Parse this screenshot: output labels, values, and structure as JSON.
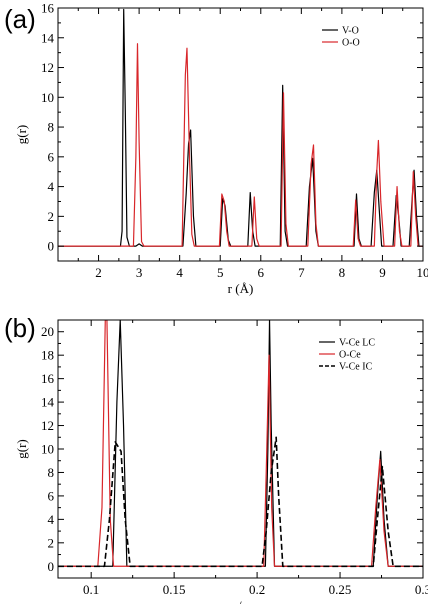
{
  "chart_data": [
    {
      "panel_label": "(a)",
      "type": "line",
      "xlabel": "r (Å)",
      "ylabel": "g(r)",
      "xlim": [
        1,
        10
      ],
      "ylim": [
        -1,
        16
      ],
      "xticks": [
        2,
        3,
        4,
        5,
        6,
        7,
        8,
        9,
        10
      ],
      "yticks": [
        0,
        2,
        4,
        6,
        8,
        10,
        12,
        14,
        16
      ],
      "legend_position": "top-right",
      "series": [
        {
          "name": "V-O",
          "color": "#000000",
          "dash": "solid",
          "points": [
            [
              1.0,
              0
            ],
            [
              2.54,
              0
            ],
            [
              2.58,
              1.0
            ],
            [
              2.62,
              15.9
            ],
            [
              2.66,
              9.0
            ],
            [
              2.7,
              0.6
            ],
            [
              2.76,
              0
            ],
            [
              2.92,
              0
            ],
            [
              3.0,
              0.15
            ],
            [
              3.08,
              0
            ],
            [
              4.08,
              0
            ],
            [
              4.16,
              3.5
            ],
            [
              4.22,
              6.9
            ],
            [
              4.27,
              7.8
            ],
            [
              4.34,
              2.0
            ],
            [
              4.4,
              0
            ],
            [
              5.0,
              0
            ],
            [
              5.06,
              3.2
            ],
            [
              5.12,
              2.7
            ],
            [
              5.2,
              0.4
            ],
            [
              5.26,
              0
            ],
            [
              5.68,
              0
            ],
            [
              5.74,
              3.6
            ],
            [
              5.8,
              1.0
            ],
            [
              5.86,
              0
            ],
            [
              6.48,
              0
            ],
            [
              6.54,
              10.8
            ],
            [
              6.6,
              1.0
            ],
            [
              6.66,
              0
            ],
            [
              7.12,
              0
            ],
            [
              7.2,
              4.0
            ],
            [
              7.28,
              5.9
            ],
            [
              7.36,
              1.0
            ],
            [
              7.42,
              0
            ],
            [
              8.3,
              0
            ],
            [
              8.36,
              3.5
            ],
            [
              8.42,
              0.5
            ],
            [
              8.48,
              0
            ],
            [
              8.72,
              0
            ],
            [
              8.8,
              3.6
            ],
            [
              8.86,
              5.1
            ],
            [
              8.92,
              2.5
            ],
            [
              8.98,
              0
            ],
            [
              9.26,
              0
            ],
            [
              9.34,
              3.4
            ],
            [
              9.4,
              2.0
            ],
            [
              9.46,
              0
            ],
            [
              9.66,
              0
            ],
            [
              9.74,
              3.5
            ],
            [
              9.78,
              5.1
            ],
            [
              9.84,
              2.0
            ],
            [
              9.9,
              0
            ],
            [
              10.0,
              0
            ]
          ]
        },
        {
          "name": "O-O",
          "color": "#d8262a",
          "dash": "solid",
          "points": [
            [
              1.0,
              0
            ],
            [
              2.86,
              0
            ],
            [
              2.92,
              6.0
            ],
            [
              2.96,
              13.6
            ],
            [
              3.0,
              7.0
            ],
            [
              3.06,
              0.3
            ],
            [
              3.12,
              0
            ],
            [
              4.06,
              0
            ],
            [
              4.14,
              11.5
            ],
            [
              4.18,
              13.3
            ],
            [
              4.24,
              6.3
            ],
            [
              4.3,
              0.8
            ],
            [
              4.36,
              0
            ],
            [
              4.98,
              0
            ],
            [
              5.04,
              3.5
            ],
            [
              5.1,
              3.0
            ],
            [
              5.16,
              1.0
            ],
            [
              5.22,
              0
            ],
            [
              5.78,
              0
            ],
            [
              5.84,
              3.3
            ],
            [
              5.9,
              0.5
            ],
            [
              5.96,
              0
            ],
            [
              6.5,
              0
            ],
            [
              6.56,
              10.3
            ],
            [
              6.62,
              1.5
            ],
            [
              6.68,
              0
            ],
            [
              7.16,
              0
            ],
            [
              7.24,
              5.5
            ],
            [
              7.3,
              6.8
            ],
            [
              7.36,
              1.5
            ],
            [
              7.42,
              0
            ],
            [
              8.28,
              0
            ],
            [
              8.34,
              3.1
            ],
            [
              8.4,
              0.5
            ],
            [
              8.46,
              0
            ],
            [
              8.8,
              0
            ],
            [
              8.86,
              5.0
            ],
            [
              8.9,
              7.1
            ],
            [
              8.96,
              3.0
            ],
            [
              9.04,
              0
            ],
            [
              9.3,
              0
            ],
            [
              9.36,
              4.0
            ],
            [
              9.42,
              1.0
            ],
            [
              9.48,
              0
            ],
            [
              9.7,
              0
            ],
            [
              9.76,
              5.0
            ],
            [
              9.82,
              2.0
            ],
            [
              9.88,
              0
            ],
            [
              10.0,
              0
            ]
          ]
        }
      ]
    },
    {
      "panel_label": "(b)",
      "type": "line",
      "xlabel": "r/a",
      "ylabel": "g(r)",
      "xlim": [
        0.08,
        0.3
      ],
      "ylim": [
        -1,
        21
      ],
      "xticks": [
        0.1,
        0.15,
        0.2,
        0.25,
        0.3
      ],
      "xtick_labels": [
        "0.1",
        "0.15",
        "0.2",
        "0.25",
        "0.3"
      ],
      "yticks": [
        0,
        2,
        4,
        6,
        8,
        10,
        12,
        14,
        16,
        18,
        20
      ],
      "legend_position": "top-right",
      "series": [
        {
          "name": "V-Ce LC",
          "color": "#000000",
          "dash": "solid",
          "points": [
            [
              0.08,
              0
            ],
            [
              0.113,
              0
            ],
            [
              0.1155,
              14
            ],
            [
              0.1175,
              21
            ],
            [
              0.1195,
              12
            ],
            [
              0.1215,
              0
            ],
            [
              0.205,
              0
            ],
            [
              0.2065,
              10
            ],
            [
              0.2075,
              21
            ],
            [
              0.2085,
              12
            ],
            [
              0.2105,
              0
            ],
            [
              0.27,
              0
            ],
            [
              0.2725,
              6
            ],
            [
              0.2745,
              9.8
            ],
            [
              0.2765,
              4
            ],
            [
              0.279,
              0
            ],
            [
              0.3,
              0
            ]
          ]
        },
        {
          "name": "O-Ce",
          "color": "#d8262a",
          "dash": "solid",
          "points": [
            [
              0.08,
              0
            ],
            [
              0.104,
              0
            ],
            [
              0.1065,
              5
            ],
            [
              0.1085,
              21
            ],
            [
              0.1095,
              21
            ],
            [
              0.1115,
              4
            ],
            [
              0.1135,
              0
            ],
            [
              0.204,
              0
            ],
            [
              0.2055,
              8
            ],
            [
              0.2072,
              18
            ],
            [
              0.2088,
              5
            ],
            [
              0.2105,
              0
            ],
            [
              0.269,
              0
            ],
            [
              0.2715,
              5
            ],
            [
              0.274,
              9.1
            ],
            [
              0.2765,
              3
            ],
            [
              0.279,
              0
            ],
            [
              0.3,
              0
            ]
          ]
        },
        {
          "name": "V-Ce IC",
          "color": "#000000",
          "dash": "dashed",
          "points": [
            [
              0.08,
              0
            ],
            [
              0.108,
              0
            ],
            [
              0.111,
              4
            ],
            [
              0.1145,
              10.6
            ],
            [
              0.118,
              9.8
            ],
            [
              0.1205,
              4
            ],
            [
              0.1235,
              0
            ],
            [
              0.203,
              0
            ],
            [
              0.2055,
              3
            ],
            [
              0.2085,
              8
            ],
            [
              0.2115,
              11
            ],
            [
              0.213,
              6
            ],
            [
              0.2155,
              0
            ],
            [
              0.27,
              0
            ],
            [
              0.2725,
              4
            ],
            [
              0.2755,
              8.5
            ],
            [
              0.279,
              3
            ],
            [
              0.282,
              0
            ],
            [
              0.3,
              0
            ]
          ]
        }
      ]
    }
  ]
}
